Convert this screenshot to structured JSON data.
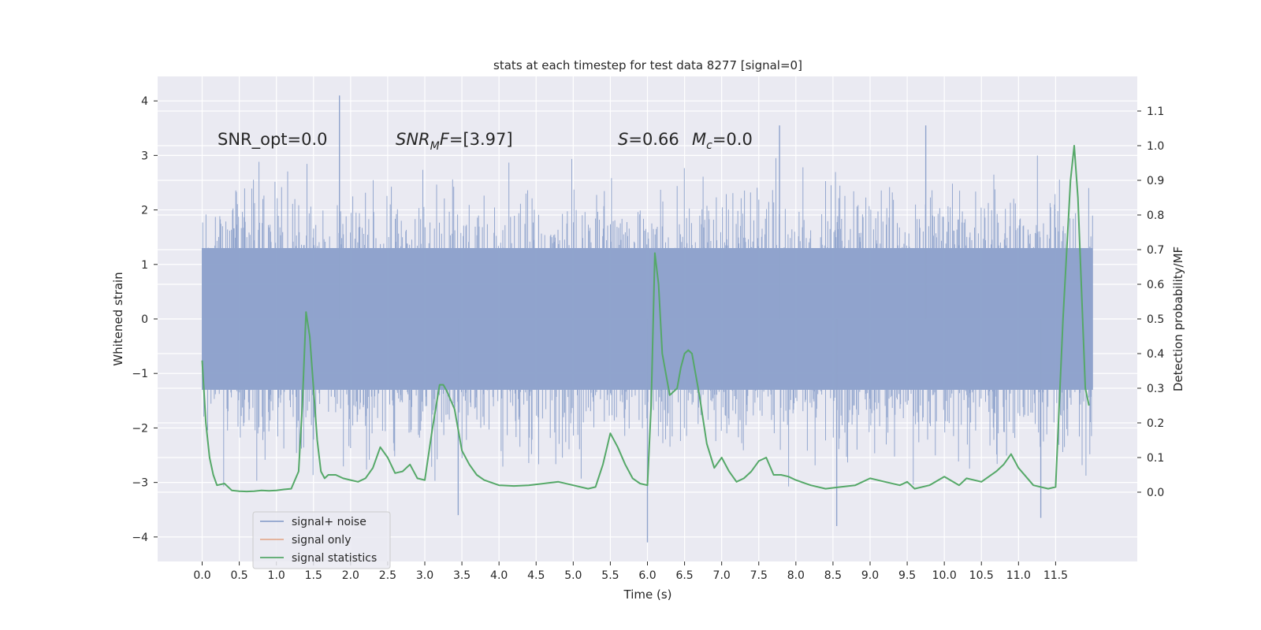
{
  "chart_data": {
    "type": "line",
    "title": "stats at each timestep for test data 8277 [signal=0]",
    "xlabel": "Time (s)",
    "ylabel_left": "Whitened strain",
    "ylabel_right": "Detection probability/MF",
    "xlim": [
      -0.6,
      12.6
    ],
    "ylim_left": [
      -4.45,
      4.45
    ],
    "ylim_right": [
      -0.2,
      1.2
    ],
    "xticks": [
      "0.0",
      "0.5",
      "1.0",
      "1.5",
      "2.0",
      "2.5",
      "3.0",
      "3.5",
      "4.0",
      "4.5",
      "5.0",
      "5.5",
      "6.0",
      "6.5",
      "7.0",
      "7.5",
      "8.0",
      "8.5",
      "9.0",
      "9.5",
      "10.0",
      "10.5",
      "11.0",
      "11.5"
    ],
    "yticks_left": [
      "4",
      "3",
      "2",
      "1",
      "0",
      "−1",
      "−2",
      "−3",
      "−4"
    ],
    "yticks_right": [
      "1.1",
      "1.0",
      "0.9",
      "0.8",
      "0.7",
      "0.6",
      "0.5",
      "0.4",
      "0.3",
      "0.2",
      "0.1",
      "0.0"
    ],
    "grid": true,
    "legend_placement": "lower-left",
    "annotations": {
      "snr_opt": "SNR_opt=0.0",
      "snr_mf_sym": "SNR",
      "snr_mf_sub": "M",
      "snr_mf_tail": "F",
      "snr_mf_value": "=[3.97]",
      "s_sym": "S",
      "s_value": "=0.66",
      "mc_sym": "M",
      "mc_sub": "c",
      "mc_value": "=0.0"
    },
    "series": [
      {
        "name": "signal+ noise",
        "color": "#8fa3cc",
        "axis": "left",
        "style": "dense noise trace, bulk band about ±1.3 with peaks reaching ~4.1 and ~-4.1",
        "peaks": [
          {
            "x": 1.85,
            "y": 4.1
          },
          {
            "x": 7.78,
            "y": 3.55
          },
          {
            "x": 9.75,
            "y": 3.55
          },
          {
            "x": 6.0,
            "y": -4.1
          },
          {
            "x": 3.45,
            "y": -3.6
          },
          {
            "x": 8.55,
            "y": -3.8
          },
          {
            "x": 11.3,
            "y": -3.65
          }
        ]
      },
      {
        "name": "signal only",
        "color": "#dd8452",
        "axis": "left",
        "x": [
          0.0,
          12.0
        ],
        "y": [
          0.0,
          0.0
        ]
      },
      {
        "name": "signal statistics",
        "color": "#55a868",
        "axis": "right",
        "x": [
          0.0,
          0.05,
          0.1,
          0.15,
          0.2,
          0.3,
          0.4,
          0.5,
          0.6,
          0.7,
          0.8,
          0.9,
          1.0,
          1.1,
          1.2,
          1.3,
          1.35,
          1.4,
          1.45,
          1.5,
          1.55,
          1.6,
          1.65,
          1.7,
          1.8,
          1.9,
          2.0,
          2.1,
          2.2,
          2.3,
          2.4,
          2.5,
          2.6,
          2.7,
          2.8,
          2.9,
          3.0,
          3.1,
          3.2,
          3.25,
          3.3,
          3.4,
          3.5,
          3.6,
          3.7,
          3.8,
          4.0,
          4.2,
          4.4,
          4.6,
          4.8,
          5.0,
          5.2,
          5.3,
          5.4,
          5.5,
          5.6,
          5.7,
          5.8,
          5.9,
          6.0,
          6.05,
          6.1,
          6.15,
          6.2,
          6.3,
          6.4,
          6.45,
          6.5,
          6.55,
          6.6,
          6.7,
          6.8,
          6.9,
          7.0,
          7.1,
          7.2,
          7.3,
          7.4,
          7.5,
          7.6,
          7.7,
          7.8,
          7.9,
          8.0,
          8.2,
          8.4,
          8.6,
          8.8,
          9.0,
          9.2,
          9.4,
          9.5,
          9.6,
          9.8,
          10.0,
          10.2,
          10.3,
          10.5,
          10.7,
          10.8,
          10.9,
          11.0,
          11.2,
          11.4,
          11.5,
          11.6,
          11.7,
          11.75,
          11.8,
          11.9,
          11.95
        ],
        "y": [
          0.38,
          0.2,
          0.1,
          0.05,
          0.02,
          0.025,
          0.005,
          0.003,
          0.002,
          0.003,
          0.005,
          0.004,
          0.005,
          0.008,
          0.01,
          0.06,
          0.25,
          0.52,
          0.45,
          0.3,
          0.15,
          0.06,
          0.04,
          0.05,
          0.05,
          0.04,
          0.035,
          0.03,
          0.04,
          0.07,
          0.13,
          0.1,
          0.055,
          0.06,
          0.08,
          0.04,
          0.035,
          0.18,
          0.31,
          0.31,
          0.29,
          0.24,
          0.12,
          0.08,
          0.05,
          0.035,
          0.02,
          0.018,
          0.02,
          0.025,
          0.03,
          0.02,
          0.01,
          0.015,
          0.08,
          0.17,
          0.13,
          0.08,
          0.04,
          0.025,
          0.02,
          0.25,
          0.69,
          0.6,
          0.4,
          0.28,
          0.3,
          0.36,
          0.4,
          0.41,
          0.4,
          0.28,
          0.14,
          0.07,
          0.1,
          0.06,
          0.03,
          0.04,
          0.06,
          0.09,
          0.1,
          0.05,
          0.05,
          0.045,
          0.035,
          0.02,
          0.01,
          0.015,
          0.02,
          0.04,
          0.03,
          0.02,
          0.03,
          0.01,
          0.02,
          0.045,
          0.02,
          0.04,
          0.03,
          0.06,
          0.08,
          0.11,
          0.07,
          0.02,
          0.01,
          0.015,
          0.5,
          0.9,
          1.0,
          0.85,
          0.3,
          0.25
        ]
      }
    ]
  }
}
